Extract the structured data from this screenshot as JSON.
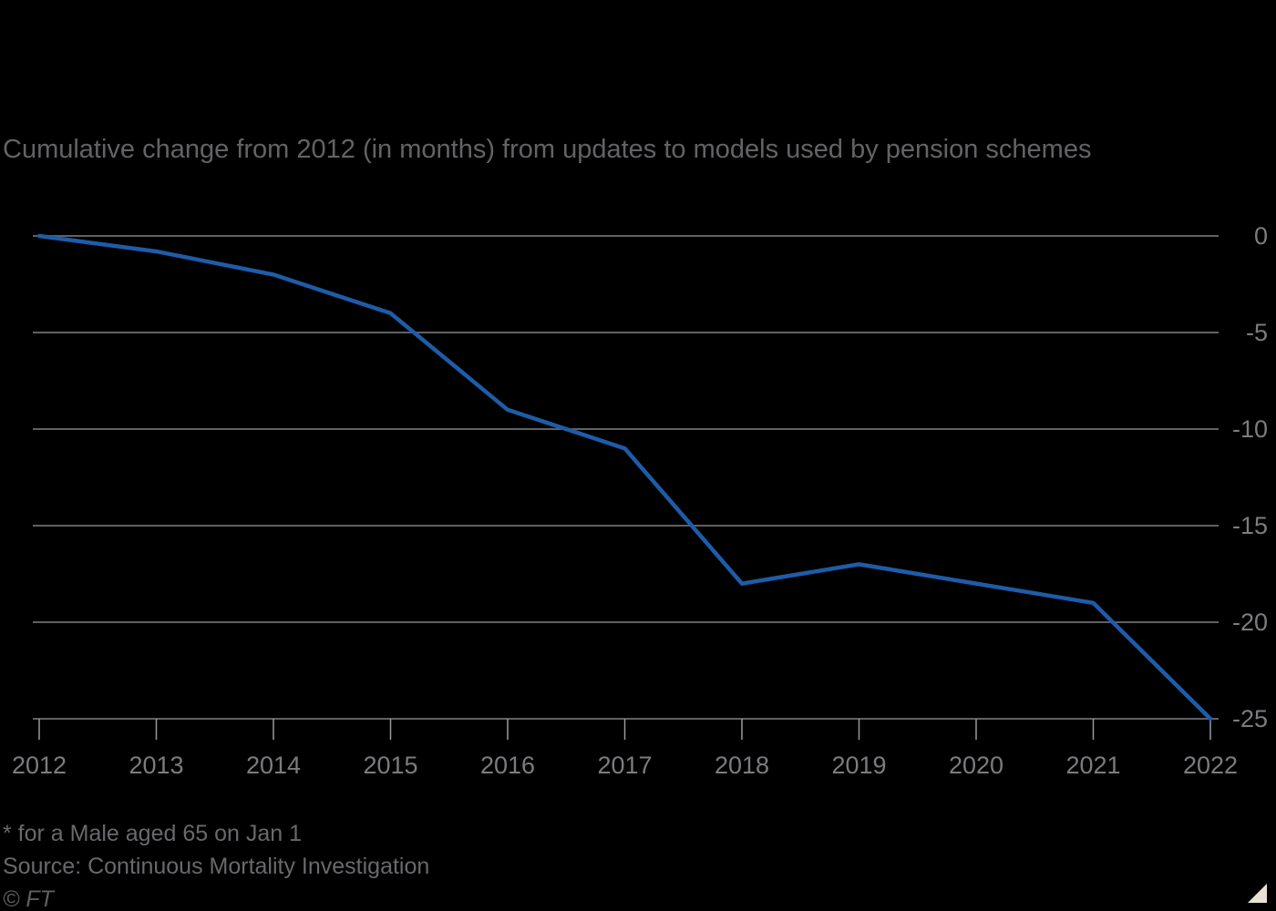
{
  "title": "Cumulative change from 2012 (in months) from updates to models used by pension schemes",
  "footnote": "* for a Male aged 65 on Jan 1",
  "source": "Source: Continuous Mortality Investigation",
  "credit": "© FT",
  "colors": {
    "background": "#000000",
    "line": "#1e5ca9",
    "gridline": "#616164",
    "tick": "#9a9a9e",
    "axis_label": "#7c7c80",
    "title_text": "#636366",
    "footer_text": "#69696d",
    "corner_triangle": "#e9e2d4"
  },
  "chart_data": {
    "type": "line",
    "title": "Cumulative change from 2012 (in months) from updates to models used by pension schemes",
    "x": [
      2012,
      2013,
      2014,
      2015,
      2016,
      2017,
      2018,
      2019,
      2020,
      2021,
      2022
    ],
    "series": [
      {
        "name": "Cumulative change from 2012 in months",
        "values": [
          0,
          -0.8,
          -2,
          -4,
          -9,
          -11,
          -18,
          -17,
          -18,
          -19,
          -25
        ]
      }
    ],
    "xlabel": "",
    "ylabel": "",
    "ylim": [
      -25,
      0
    ],
    "yticks": [
      0,
      -5,
      -10,
      -15,
      -20,
      -25
    ],
    "xticks": [
      2012,
      2013,
      2014,
      2015,
      2016,
      2017,
      2018,
      2019,
      2020,
      2021,
      2022
    ],
    "grid": true,
    "legend": false,
    "y_axis_side": "right"
  }
}
